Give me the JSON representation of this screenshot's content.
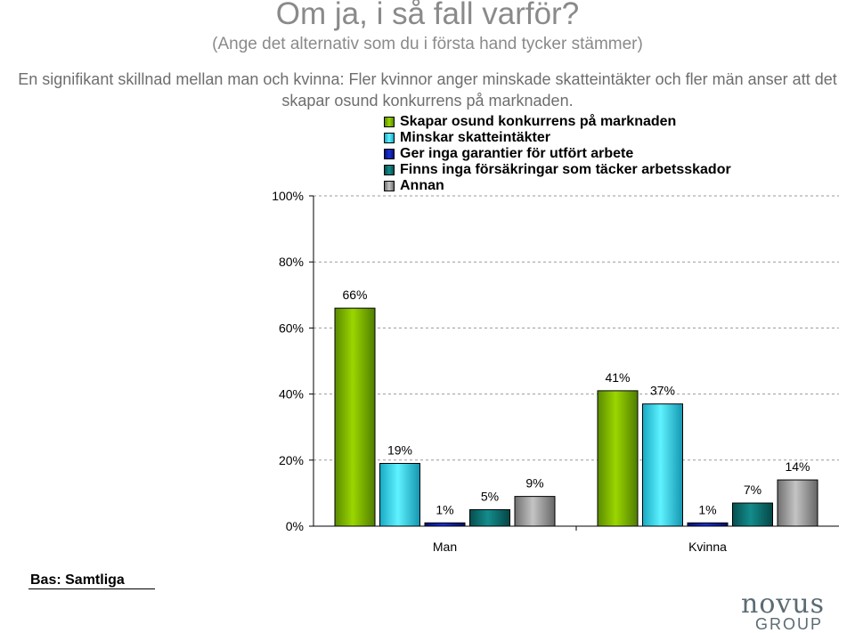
{
  "header": {
    "title": "Om ja, i så fall varför?",
    "subtitle": "(Ange det alternativ som du i första hand tycker stämmer)",
    "note": "En signifikant skillnad mellan man och kvinna: Fler kvinnor anger minskade skatteintäkter och fler män anser att det skapar osund konkurrens på marknaden."
  },
  "footer": {
    "basis": "Bas: Samtliga",
    "logo_main": "novus",
    "logo_sub": "GROUP"
  },
  "chart_data": {
    "type": "bar",
    "categories": [
      "Man",
      "Kvinna"
    ],
    "series": [
      {
        "name": "Skapar osund konkurrens på marknaden",
        "values": [
          66,
          41
        ],
        "color": "#7fb300"
      },
      {
        "name": "Minskar skatteintäkter",
        "values": [
          19,
          37
        ],
        "color": "#33d6f0"
      },
      {
        "name": "Ger inga garantier för utfört arbete",
        "values": [
          1,
          1
        ],
        "color": "#0a1aa6"
      },
      {
        "name": "Finns inga försäkringar som täcker arbetsskador",
        "values": [
          5,
          7
        ],
        "color": "#0d6e6e"
      },
      {
        "name": "Annan",
        "values": [
          9,
          14
        ],
        "color": "#999999"
      }
    ],
    "yticks": [
      "0%",
      "20%",
      "40%",
      "60%",
      "80%",
      "100%"
    ],
    "ylim": [
      0,
      100
    ],
    "value_suffix": "%",
    "grid": true,
    "legend_position": "top"
  }
}
